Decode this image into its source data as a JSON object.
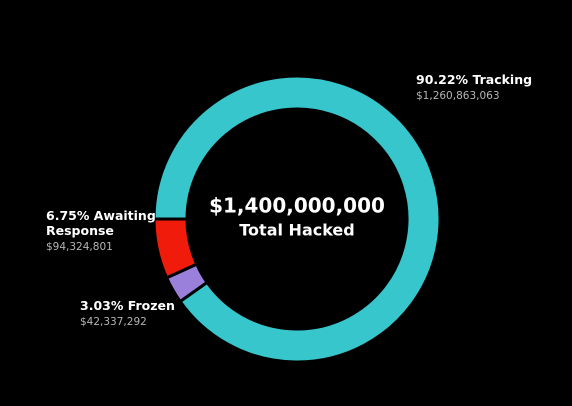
{
  "chart_data": {
    "type": "donut",
    "center_value": "$1,400,000,000",
    "center_label": "Total Hacked",
    "categories": [
      "Tracking",
      "Awaiting Response",
      "Frozen"
    ],
    "values": [
      90.22,
      6.75,
      3.03
    ],
    "value_labels": [
      "90.22%",
      "6.75%",
      "3.03%"
    ],
    "amount_labels": [
      "$1,260,863,063",
      "$94,324,801",
      "$42,337,292"
    ],
    "colors": [
      "#36c6cc",
      "#f11b0b",
      "#9a7fdb"
    ]
  }
}
